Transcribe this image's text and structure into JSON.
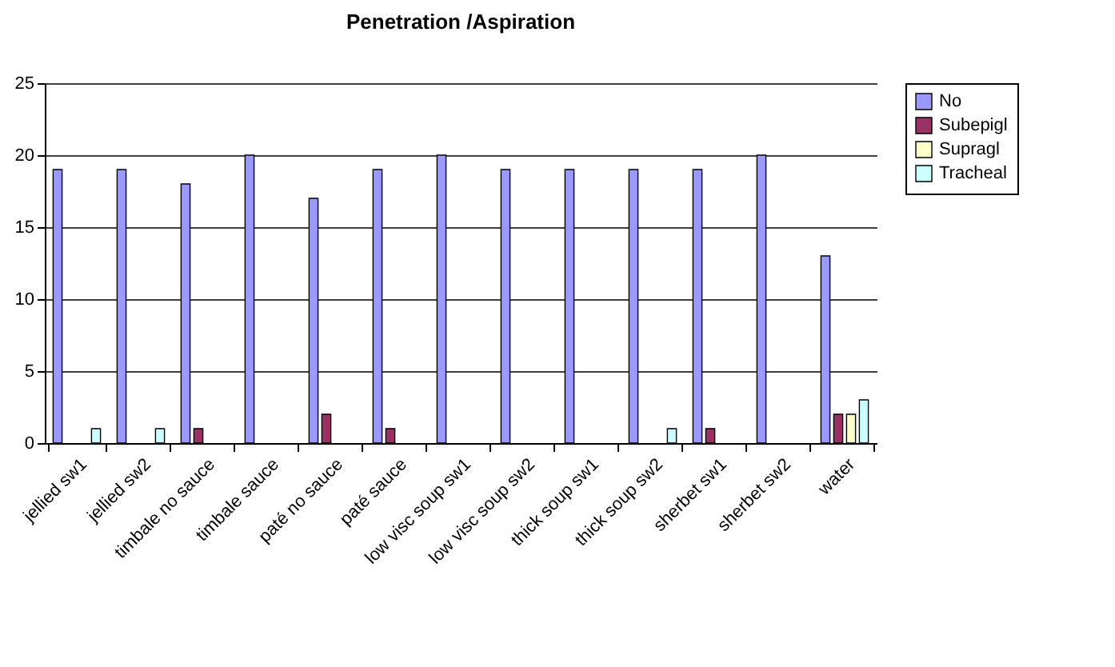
{
  "chart_data": {
    "type": "bar",
    "title": "Penetration /Aspiration",
    "categories": [
      "jellied sw1",
      "jellied sw2",
      "timbale no sauce",
      "timbale sauce",
      "paté no sauce",
      "paté sauce",
      "low visc soup sw1",
      "low visc soup sw2",
      "thick soup sw1",
      "thick soup sw2",
      "sherbet sw1",
      "sherbet sw2",
      "water"
    ],
    "series": [
      {
        "name": "No",
        "color": "#9999ff",
        "values": [
          19,
          19,
          18,
          20,
          17,
          19,
          20,
          19,
          19,
          19,
          19,
          20,
          13
        ]
      },
      {
        "name": "Subepigl",
        "color": "#993366",
        "values": [
          0,
          0,
          1,
          0,
          2,
          1,
          0,
          0,
          0,
          0,
          1,
          0,
          2
        ]
      },
      {
        "name": "Supragl",
        "color": "#ffffcc",
        "values": [
          0,
          0,
          0,
          0,
          0,
          0,
          0,
          0,
          0,
          0,
          0,
          0,
          2
        ]
      },
      {
        "name": "Tracheal",
        "color": "#ccffff",
        "values": [
          1,
          1,
          0,
          0,
          0,
          0,
          0,
          0,
          0,
          1,
          0,
          0,
          3
        ]
      }
    ],
    "ylim": [
      0,
      25
    ],
    "yticks": [
      0,
      5,
      10,
      15,
      20,
      25
    ],
    "grid": "y",
    "legend": "right"
  }
}
